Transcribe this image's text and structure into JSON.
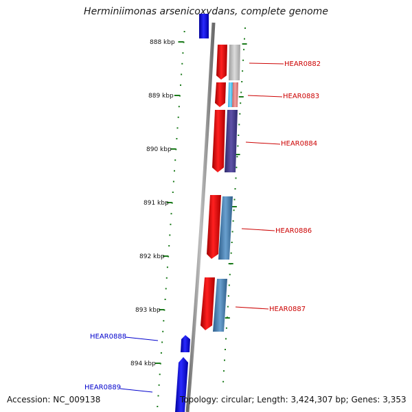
{
  "title": "Herminiimonas arsenicoxydans, complete genome",
  "accession_text": "Accession: NC_009138",
  "summary_text": "Topology: circular; Length: 3,424,307 bp; Genes: 3,353",
  "colors": {
    "forward_strand": "#e00000",
    "reverse_strand": "#0000e0",
    "backbone": "#8c8c8c",
    "ruler_tick": "#1a7a1a"
  },
  "ruler_labels": [
    "888 kbp",
    "889 kbp",
    "890 kbp",
    "891 kbp",
    "892 kbp",
    "893 kbp",
    "894 kbp"
  ],
  "genes": [
    {
      "id": "HEAR0882",
      "strand": "forward",
      "label_color": "#cc0000"
    },
    {
      "id": "HEAR0883",
      "strand": "forward",
      "label_color": "#cc0000"
    },
    {
      "id": "HEAR0884",
      "strand": "forward",
      "label_color": "#cc0000"
    },
    {
      "id": "HEAR0886",
      "strand": "forward",
      "label_color": "#cc0000"
    },
    {
      "id": "HEAR0887",
      "strand": "forward",
      "label_color": "#cc0000"
    },
    {
      "id": "HEAR0888",
      "strand": "reverse",
      "label_color": "#0000cc"
    },
    {
      "id": "HEAR0889",
      "strand": "reverse",
      "label_color": "#0000cc"
    }
  ]
}
